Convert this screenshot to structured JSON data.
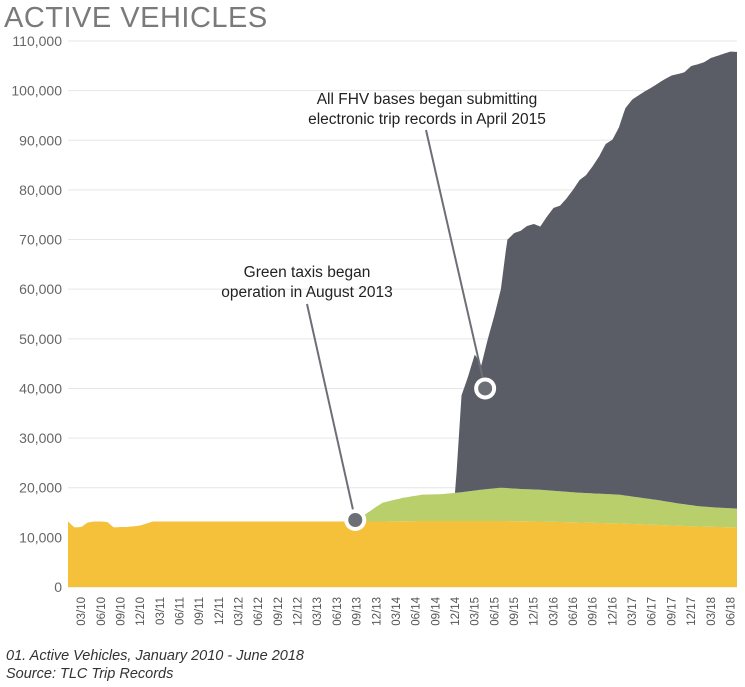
{
  "title": "ACTIVE VEHICLES",
  "caption": "01. Active Vehicles, January 2010 - June 2018",
  "source": "Source: TLC Trip Records",
  "colors": {
    "yellow": "#f5c13b",
    "green": "#b8cf6b",
    "fhv": "#5b5d66",
    "marker": "#6d6f76"
  },
  "annotations": [
    {
      "lines": [
        "All FHV bases began submitting",
        "electronic trip records in April 2015"
      ],
      "x": 2015.3,
      "y": 40000
    },
    {
      "lines": [
        "Green taxis began",
        "operation in August 2013"
      ],
      "x": 2013.65,
      "y": 13500
    }
  ],
  "chart_data": {
    "type": "area",
    "stacked": true,
    "ylim": [
      0,
      110000
    ],
    "yticks": [
      0,
      10000,
      20000,
      30000,
      40000,
      50000,
      60000,
      70000,
      80000,
      90000,
      100000,
      110000
    ],
    "ytick_labels": [
      "0",
      "10,000",
      "20,000",
      "30,000",
      "40,000",
      "50,000",
      "60,000",
      "70,000",
      "80,000",
      "90,000",
      "100,000",
      "110,000"
    ],
    "xlim": [
      2010.0,
      2018.5
    ],
    "xticks": [
      "03/10",
      "06/10",
      "09/10",
      "12/10",
      "03/11",
      "06/11",
      "09/11",
      "12/11",
      "03/12",
      "06/12",
      "09/12",
      "12/12",
      "03/13",
      "06/13",
      "09/13",
      "12/13",
      "03/14",
      "06/14",
      "09/14",
      "12/14",
      "03/15",
      "06/15",
      "09/15",
      "12/15",
      "03/16",
      "06/16",
      "09/16",
      "12/16",
      "03/17",
      "06/17",
      "09/17",
      "12/17",
      "03/18",
      "06/18"
    ],
    "series": [
      {
        "key": "yellow",
        "x": [
          2010.0,
          2010.08,
          2010.17,
          2010.25,
          2010.33,
          2010.42,
          2010.5,
          2010.58,
          2010.67,
          2010.75,
          2010.83,
          2010.92,
          2011.0,
          2011.08,
          2011.17,
          2011.25,
          2011.5,
          2012.0,
          2012.5,
          2013.0,
          2013.5,
          2014.0,
          2014.5,
          2015.0,
          2015.5,
          2016.0,
          2016.5,
          2017.0,
          2017.5,
          2018.0,
          2018.5
        ],
        "values": [
          13200,
          12000,
          12100,
          13000,
          13200,
          13200,
          13100,
          12000,
          12100,
          12100,
          12200,
          12400,
          12800,
          13200,
          13200,
          13200,
          13200,
          13200,
          13200,
          13200,
          13200,
          13200,
          13300,
          13300,
          13300,
          13200,
          13000,
          12800,
          12500,
          12200,
          12000
        ]
      },
      {
        "key": "green",
        "x": [
          2010.0,
          2013.58,
          2013.67,
          2013.75,
          2013.83,
          2013.92,
          2014.0,
          2014.25,
          2014.5,
          2014.75,
          2015.0,
          2015.25,
          2015.5,
          2015.75,
          2016.0,
          2016.5,
          2017.0,
          2017.25,
          2017.5,
          2017.75,
          2018.0,
          2018.25,
          2018.5
        ],
        "values": [
          0,
          0,
          600,
          1200,
          2000,
          3000,
          3800,
          4700,
          5300,
          5400,
          5800,
          6300,
          6700,
          6500,
          6400,
          6000,
          5800,
          5400,
          5000,
          4500,
          4100,
          3900,
          3800
        ]
      },
      {
        "key": "fhv",
        "x": [
          2010.0,
          2014.92,
          2015.0,
          2015.08,
          2015.17,
          2015.25,
          2015.33,
          2015.42,
          2015.5,
          2015.58,
          2015.67,
          2015.75,
          2015.83,
          2015.92,
          2016.0,
          2016.08,
          2016.17,
          2016.25,
          2016.33,
          2016.42,
          2016.5,
          2016.58,
          2016.67,
          2016.75,
          2016.83,
          2016.92,
          2017.0,
          2017.08,
          2017.17,
          2017.25,
          2017.33,
          2017.42,
          2017.5,
          2017.58,
          2017.67,
          2017.75,
          2017.83,
          2017.92,
          2018.0,
          2018.08,
          2018.17,
          2018.25,
          2018.33,
          2018.42,
          2018.5
        ],
        "values": [
          0,
          0,
          19500,
          23000,
          27500,
          25000,
          30000,
          35000,
          40000,
          50000,
          51500,
          52000,
          53000,
          53500,
          53000,
          55000,
          57000,
          57500,
          59000,
          61000,
          63000,
          64000,
          66000,
          68000,
          70500,
          71500,
          74000,
          78000,
          80000,
          81000,
          82000,
          83000,
          84000,
          85000,
          86000,
          86500,
          87000,
          88500,
          89000,
          89500,
          90500,
          91000,
          91500,
          92000,
          92000
        ]
      }
    ]
  }
}
